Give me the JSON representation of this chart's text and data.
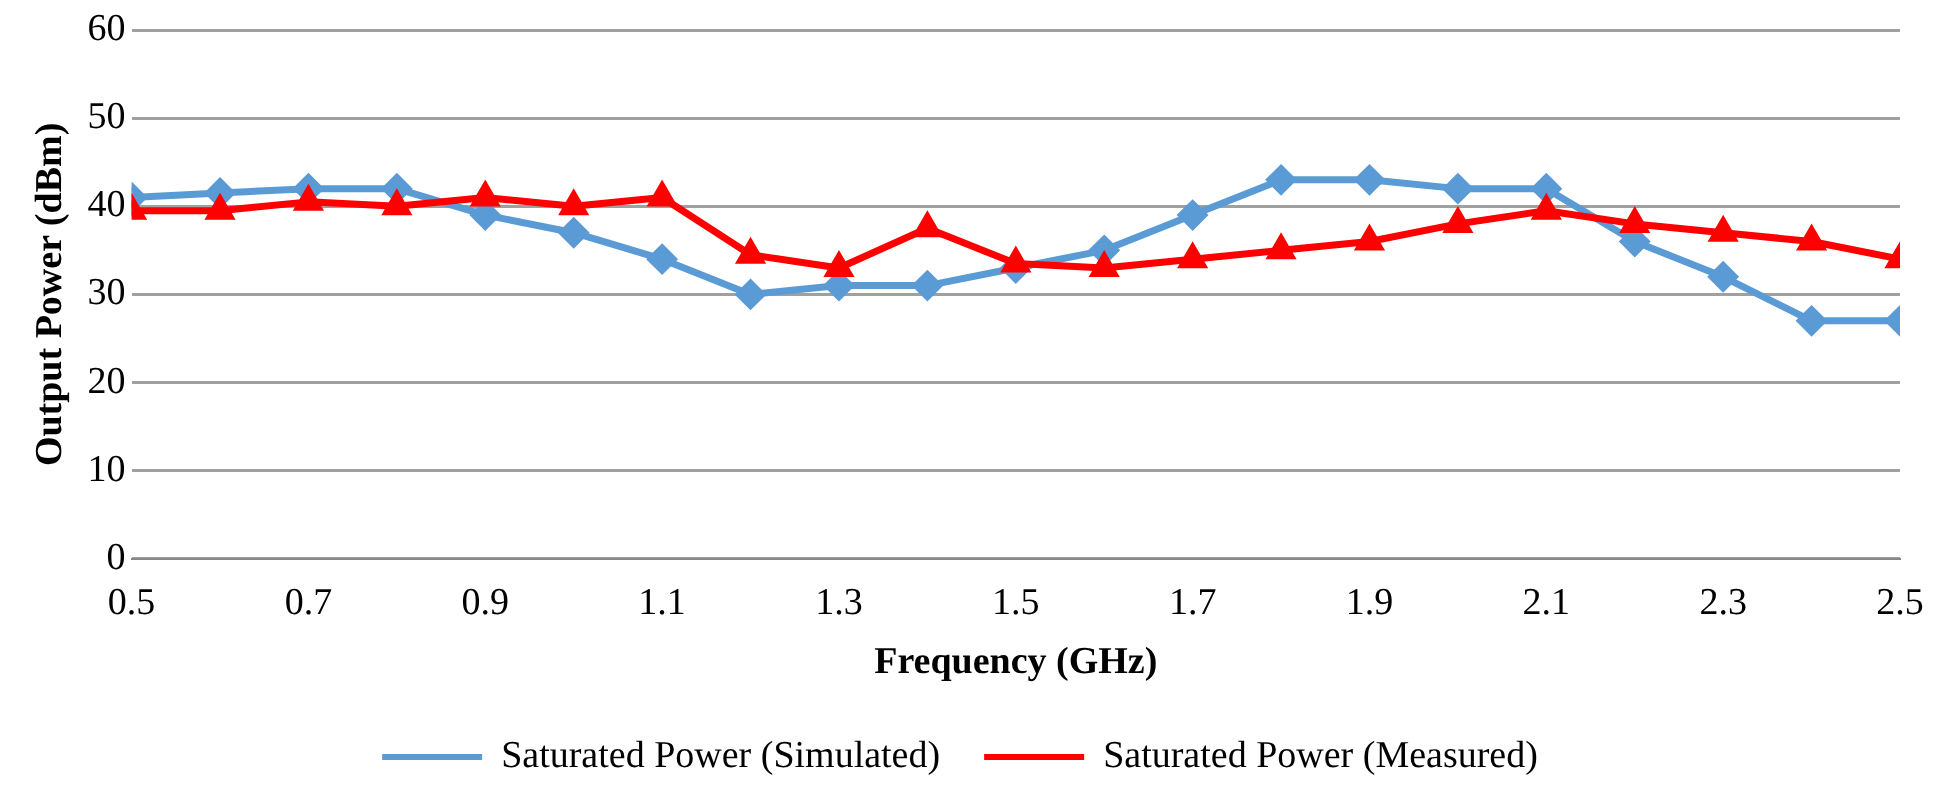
{
  "chart_data": {
    "type": "line",
    "xlabel": "Frequency (GHz)",
    "ylabel": "Output Power (dBm)",
    "x": [
      0.5,
      0.6,
      0.7,
      0.8,
      0.9,
      1.0,
      1.1,
      1.2,
      1.3,
      1.4,
      1.5,
      1.6,
      1.7,
      1.8,
      1.9,
      2.0,
      2.1,
      2.2,
      2.3,
      2.4,
      2.5
    ],
    "series": [
      {
        "name": "Saturated Power (Simulated)",
        "color": "#5b9bd5",
        "marker": "diamond",
        "values": [
          41,
          41.5,
          42,
          42,
          39,
          37,
          34,
          30,
          31,
          31,
          33,
          35,
          39,
          43,
          43,
          42,
          42,
          36,
          32,
          27,
          27
        ]
      },
      {
        "name": "Saturated Power (Measured)",
        "color": "#ff0000",
        "marker": "triangle",
        "values": [
          39.5,
          39.5,
          40.5,
          40,
          41,
          40,
          41,
          34.5,
          33,
          37.5,
          33.5,
          33,
          34,
          35,
          36,
          38,
          39.5,
          38,
          37,
          36,
          34
        ]
      }
    ],
    "xlim": [
      0.5,
      2.5
    ],
    "xticks": [
      0.5,
      0.7,
      0.9,
      1.1,
      1.3,
      1.5,
      1.7,
      1.9,
      2.1,
      2.3,
      2.5
    ],
    "ylim": [
      0,
      60
    ],
    "yticks": [
      0,
      10,
      20,
      30,
      40,
      50,
      60
    ],
    "grid": "y",
    "legend": "bottom",
    "line_style": "solid"
  }
}
